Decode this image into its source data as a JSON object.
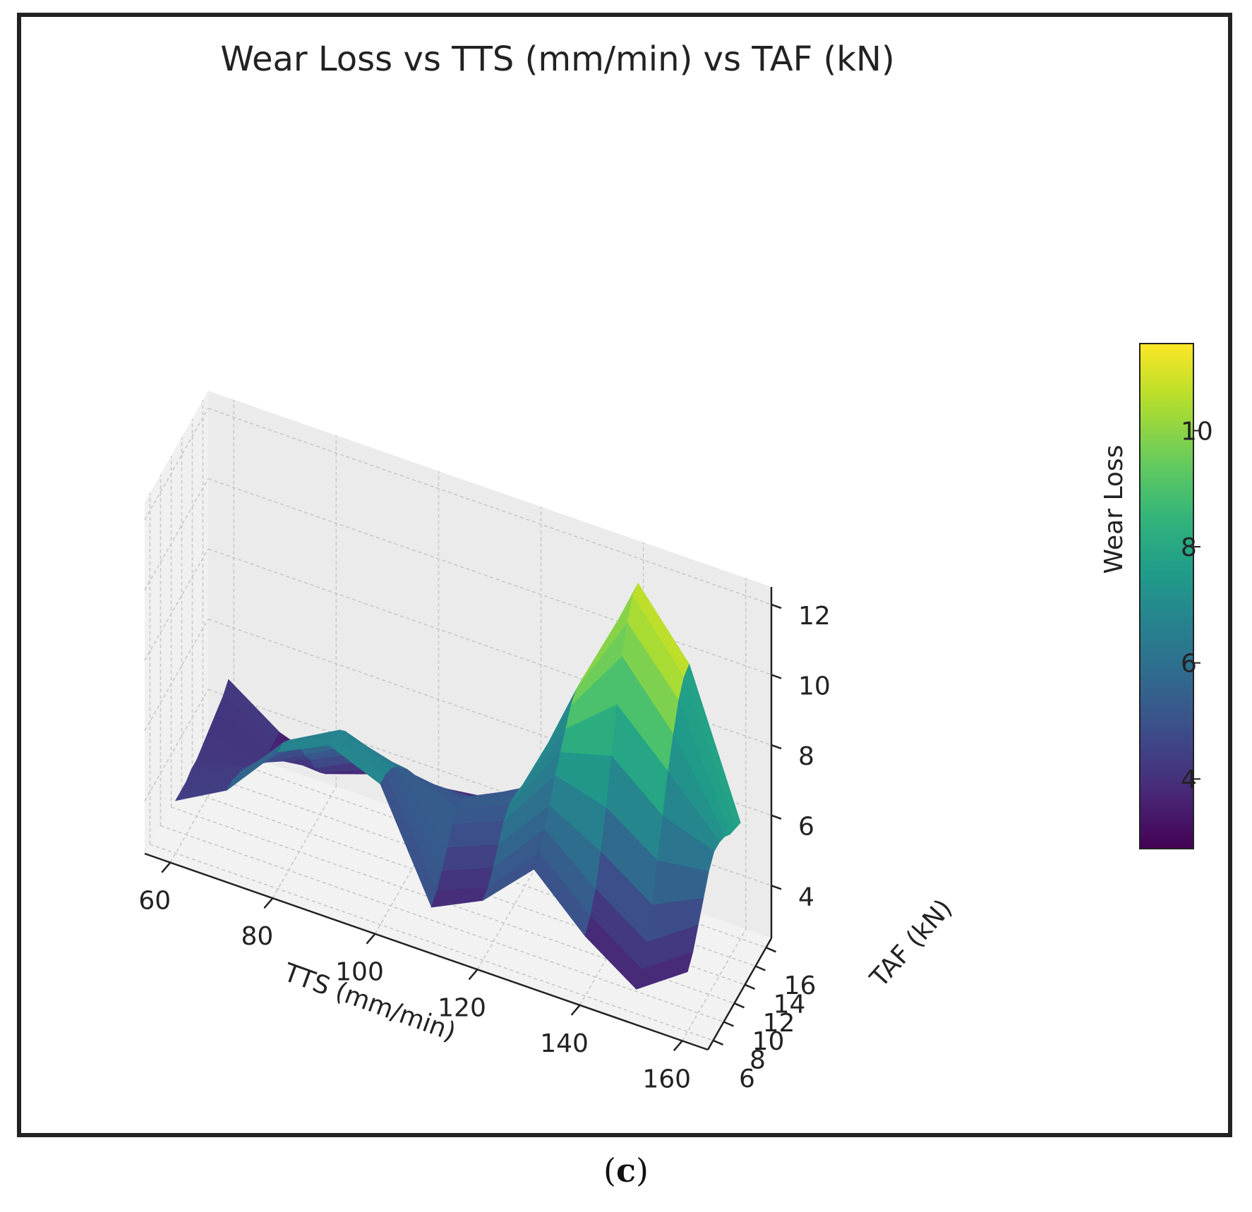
{
  "figure": {
    "caption_open": "(",
    "caption_letter": "c",
    "caption_close": ")"
  },
  "chart_data": {
    "type": "surface3d",
    "title": "Wear Loss vs TTS (mm/min) vs TAF (kN)",
    "xlabel": "TTS (mm/min)",
    "ylabel": "TAF (kN)",
    "zlabel": "Wear Loss",
    "colorbar_label": "Wear Loss",
    "colormap": "viridis",
    "xlim": [
      55,
      165
    ],
    "ylim": [
      5,
      17
    ],
    "zlim": [
      2.5,
      12.5
    ],
    "x_ticks": [
      60,
      80,
      100,
      120,
      140,
      160
    ],
    "y_ticks": [
      6,
      8,
      10,
      12,
      14,
      16
    ],
    "z_ticks": [
      4,
      6,
      8,
      10,
      12
    ],
    "colorbar_range": [
      2.8,
      11.5
    ],
    "colorbar_ticks": [
      4,
      6,
      8,
      10
    ],
    "colorbar_tick_labels": [
      "4",
      "6",
      "8",
      "10"
    ],
    "x_values": [
      60,
      70,
      80,
      90,
      100,
      110,
      120,
      130,
      140,
      150,
      160
    ],
    "y_values": [
      6,
      7,
      8,
      9,
      10,
      11,
      12,
      13,
      14,
      15,
      16
    ],
    "z_values": [
      [
        4.0,
        4.8,
        6.4,
        7.1,
        6.5,
        3.5,
        4.2,
        5.6,
        4.2,
        3.2,
        4.2
      ],
      [
        4.0,
        4.8,
        6.4,
        7.1,
        6.5,
        3.7,
        4.3,
        5.8,
        4.5,
        3.5,
        4.5
      ],
      [
        4.0,
        4.7,
        6.2,
        7.0,
        6.4,
        4.0,
        4.6,
        6.2,
        5.0,
        4.0,
        5.0
      ],
      [
        4.1,
        4.6,
        5.9,
        6.7,
        6.2,
        4.4,
        5.0,
        6.6,
        5.8,
        4.8,
        5.5
      ],
      [
        4.1,
        4.4,
        5.5,
        6.3,
        5.9,
        4.8,
        5.4,
        7.2,
        6.8,
        5.8,
        6.0
      ],
      [
        4.2,
        4.2,
        5.0,
        5.8,
        5.6,
        5.0,
        5.6,
        7.6,
        8.0,
        6.8,
        6.3
      ],
      [
        4.3,
        4.0,
        4.6,
        5.3,
        5.2,
        5.0,
        5.6,
        8.0,
        9.2,
        7.8,
        6.3
      ],
      [
        4.4,
        3.9,
        4.1,
        4.8,
        4.8,
        4.8,
        5.5,
        8.4,
        10.3,
        8.6,
        6.2
      ],
      [
        4.5,
        3.8,
        3.7,
        4.3,
        4.4,
        4.5,
        5.3,
        8.6,
        11.0,
        9.3,
        6.0
      ],
      [
        4.6,
        3.8,
        3.4,
        3.9,
        4.0,
        4.2,
        5.0,
        8.6,
        11.5,
        9.7,
        5.9
      ],
      [
        4.8,
        3.8,
        3.3,
        3.6,
        3.8,
        4.0,
        4.7,
        8.4,
        11.6,
        9.8,
        5.8
      ]
    ]
  }
}
